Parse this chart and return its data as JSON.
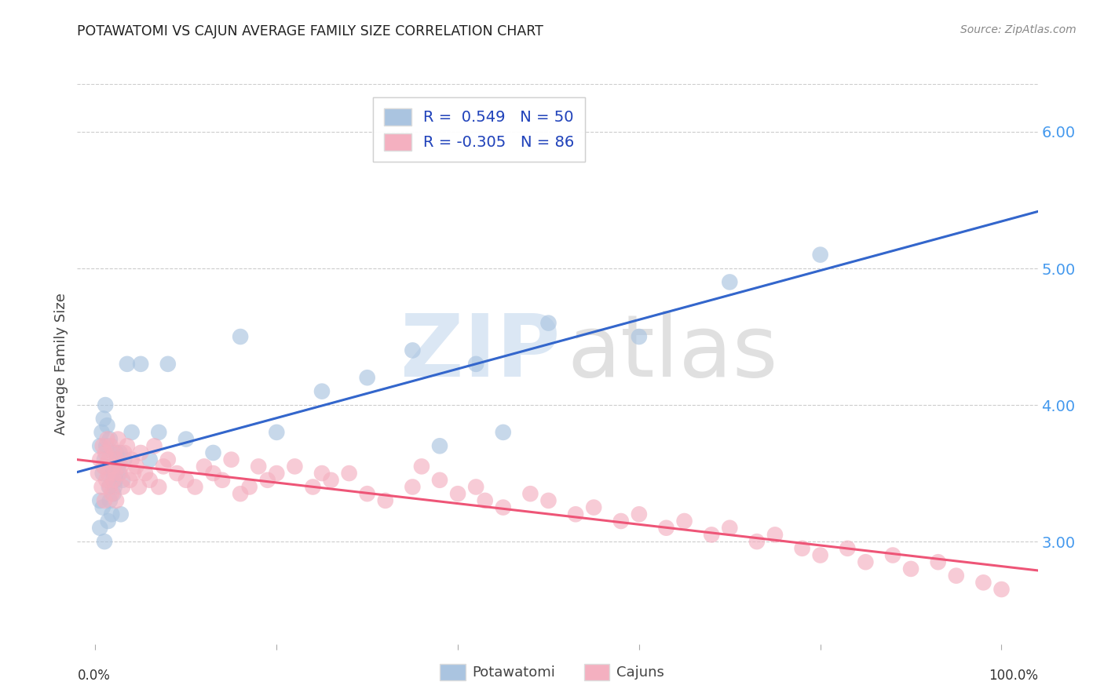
{
  "title": "POTAWATOMI VS CAJUN AVERAGE FAMILY SIZE CORRELATION CHART",
  "source": "Source: ZipAtlas.com",
  "ylabel": "Average Family Size",
  "right_yticks": [
    3.0,
    4.0,
    5.0,
    6.0
  ],
  "ylim": [
    2.25,
    6.35
  ],
  "xlim": [
    -0.02,
    1.04
  ],
  "legend_blue_label": "R =  0.549   N = 50",
  "legend_pink_label": "R = -0.305   N = 86",
  "blue_color": "#aac4e0",
  "pink_color": "#f4b0c0",
  "blue_line_color": "#3366cc",
  "pink_line_color": "#ee5577",
  "dashed_line_color": "#bbbbcc",
  "potawatomi_x": [
    0.005,
    0.008,
    0.01,
    0.012,
    0.015,
    0.018,
    0.02,
    0.022,
    0.025,
    0.027,
    0.005,
    0.008,
    0.01,
    0.014,
    0.016,
    0.019,
    0.021,
    0.024,
    0.028,
    0.03,
    0.005,
    0.007,
    0.009,
    0.011,
    0.013,
    0.016,
    0.02,
    0.023,
    0.026,
    0.032,
    0.035,
    0.04,
    0.05,
    0.06,
    0.07,
    0.08,
    0.1,
    0.13,
    0.16,
    0.2,
    0.25,
    0.3,
    0.35,
    0.42,
    0.5,
    0.6,
    0.7,
    0.8,
    0.38,
    0.45
  ],
  "potawatomi_y": [
    3.3,
    3.5,
    3.6,
    3.7,
    3.4,
    3.2,
    3.35,
    3.45,
    3.55,
    3.65,
    3.1,
    3.25,
    3.0,
    3.15,
    3.3,
    3.5,
    3.4,
    3.6,
    3.2,
    3.45,
    3.7,
    3.8,
    3.9,
    4.0,
    3.85,
    3.75,
    3.55,
    3.65,
    3.5,
    3.6,
    4.3,
    3.8,
    4.3,
    3.6,
    3.8,
    4.3,
    3.75,
    3.65,
    4.5,
    3.8,
    4.1,
    4.2,
    4.4,
    4.3,
    4.6,
    4.5,
    4.9,
    5.1,
    3.7,
    3.8
  ],
  "cajun_x": [
    0.003,
    0.005,
    0.007,
    0.008,
    0.009,
    0.01,
    0.011,
    0.012,
    0.013,
    0.014,
    0.015,
    0.016,
    0.017,
    0.018,
    0.019,
    0.02,
    0.021,
    0.022,
    0.023,
    0.024,
    0.025,
    0.027,
    0.028,
    0.03,
    0.032,
    0.035,
    0.038,
    0.04,
    0.042,
    0.045,
    0.048,
    0.05,
    0.055,
    0.06,
    0.065,
    0.07,
    0.075,
    0.08,
    0.09,
    0.1,
    0.11,
    0.12,
    0.13,
    0.14,
    0.15,
    0.16,
    0.17,
    0.18,
    0.19,
    0.2,
    0.22,
    0.24,
    0.26,
    0.28,
    0.3,
    0.32,
    0.35,
    0.38,
    0.4,
    0.43,
    0.45,
    0.48,
    0.5,
    0.53,
    0.55,
    0.58,
    0.6,
    0.63,
    0.65,
    0.68,
    0.7,
    0.73,
    0.75,
    0.78,
    0.8,
    0.83,
    0.85,
    0.88,
    0.9,
    0.93,
    0.95,
    0.98,
    1.0,
    0.25,
    0.36,
    0.42
  ],
  "cajun_y": [
    3.5,
    3.6,
    3.4,
    3.7,
    3.55,
    3.3,
    3.65,
    3.45,
    3.75,
    3.5,
    3.6,
    3.4,
    3.7,
    3.35,
    3.55,
    3.45,
    3.65,
    3.5,
    3.3,
    3.6,
    3.75,
    3.5,
    3.55,
    3.4,
    3.65,
    3.7,
    3.45,
    3.6,
    3.5,
    3.55,
    3.4,
    3.65,
    3.5,
    3.45,
    3.7,
    3.4,
    3.55,
    3.6,
    3.5,
    3.45,
    3.4,
    3.55,
    3.5,
    3.45,
    3.6,
    3.35,
    3.4,
    3.55,
    3.45,
    3.5,
    3.55,
    3.4,
    3.45,
    3.5,
    3.35,
    3.3,
    3.4,
    3.45,
    3.35,
    3.3,
    3.25,
    3.35,
    3.3,
    3.2,
    3.25,
    3.15,
    3.2,
    3.1,
    3.15,
    3.05,
    3.1,
    3.0,
    3.05,
    2.95,
    2.9,
    2.95,
    2.85,
    2.9,
    2.8,
    2.85,
    2.75,
    2.7,
    2.65,
    3.5,
    3.55,
    3.4
  ]
}
